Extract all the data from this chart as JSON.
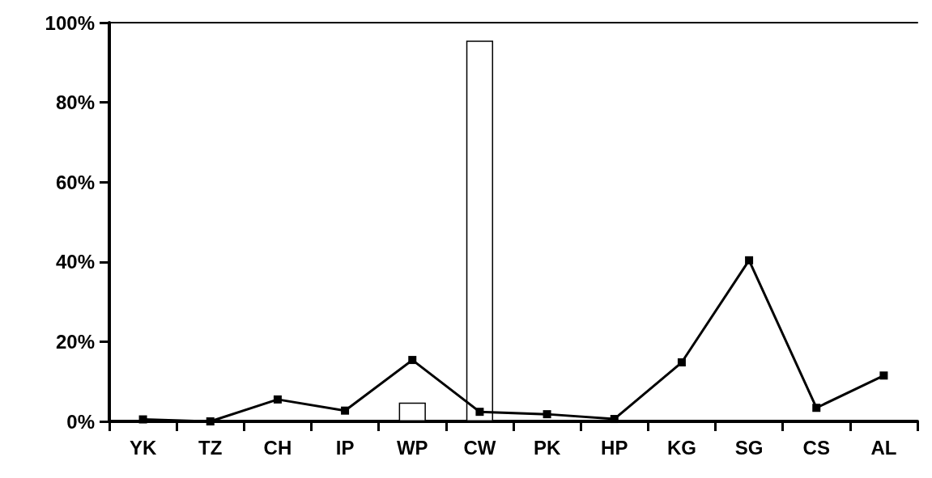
{
  "chart_data": {
    "type": "bar",
    "categories": [
      "YK",
      "TZ",
      "CH",
      "IP",
      "WP",
      "CW",
      "PK",
      "HP",
      "KG",
      "SG",
      "CS",
      "AL"
    ],
    "series": [
      {
        "color": "#ffffff",
        "values": [
          0,
          0,
          0,
          0,
          4.7,
          95.5,
          0,
          0,
          0,
          0,
          0,
          0
        ]
      },
      {
        "type": "line",
        "color": "#000000",
        "marker": "square",
        "values": [
          0.5,
          0,
          5.5,
          2.7,
          15.4,
          2.4,
          1.8,
          0.6,
          14.8,
          40.4,
          3.4,
          11.5
        ]
      }
    ],
    "ylim": [
      0,
      100
    ],
    "yticks": [
      {
        "value": 0,
        "label": "0%"
      },
      {
        "value": 20,
        "label": "20%"
      },
      {
        "value": 40,
        "label": "40%"
      },
      {
        "value": 60,
        "label": "60%"
      },
      {
        "value": 80,
        "label": "80%"
      },
      {
        "value": 100,
        "label": "100%"
      }
    ],
    "grid": false
  }
}
